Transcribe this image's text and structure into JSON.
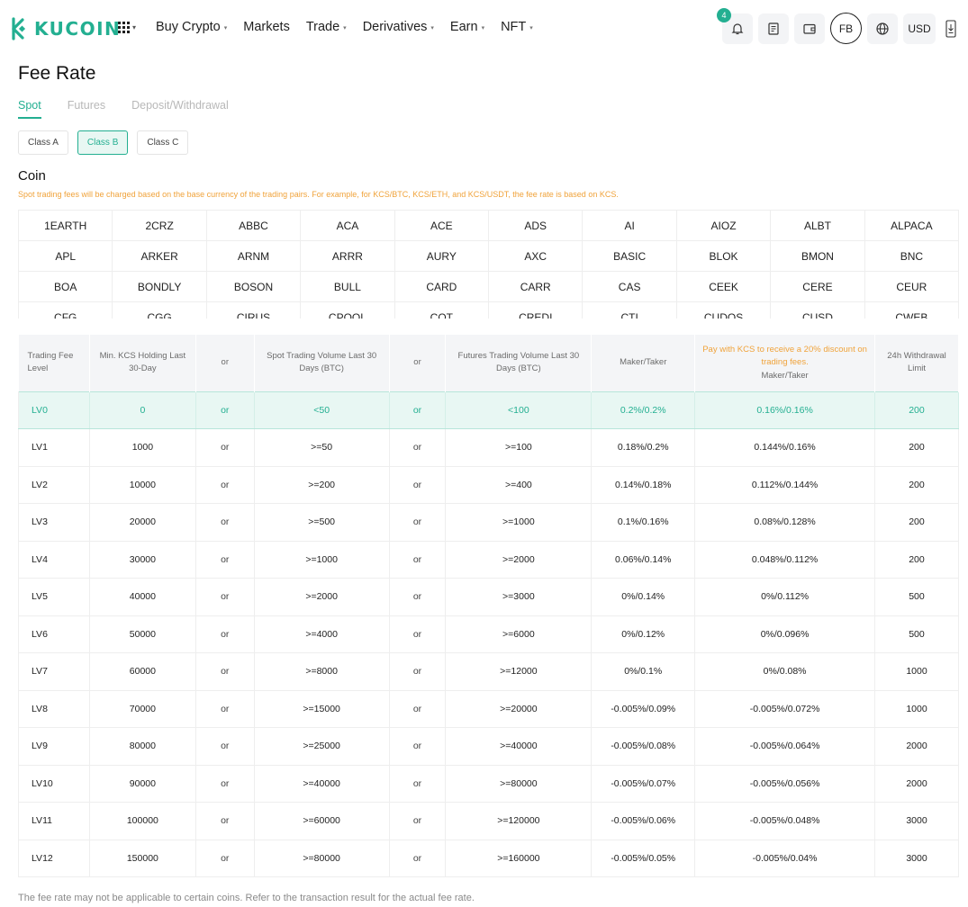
{
  "header": {
    "brand": "KUCOIN",
    "nav": [
      {
        "label": "Buy Crypto",
        "caret": true
      },
      {
        "label": "Markets",
        "caret": false
      },
      {
        "label": "Trade",
        "caret": true
      },
      {
        "label": "Derivatives",
        "caret": true
      },
      {
        "label": "Earn",
        "caret": true
      },
      {
        "label": "NFT",
        "caret": true
      }
    ],
    "notification_count": "4",
    "avatar_initials": "FB",
    "currency": "USD"
  },
  "page": {
    "title": "Fee Rate",
    "tabs": [
      "Spot",
      "Futures",
      "Deposit/Withdrawal"
    ],
    "active_tab": "Spot",
    "class_buttons": [
      "Class A",
      "Class B",
      "Class C"
    ],
    "active_class": "Class B"
  },
  "coin": {
    "title": "Coin",
    "note": "Spot trading fees will be charged based on the base currency of the trading pairs. For example, for KCS/BTC, KCS/ETH, and KCS/USDT, the fee rate is based on KCS.",
    "rows": [
      [
        "1EARTH",
        "2CRZ",
        "ABBC",
        "ACA",
        "ACE",
        "ADS",
        "AI",
        "AIOZ",
        "ALBT",
        "ALPACA"
      ],
      [
        "APL",
        "ARKER",
        "ARNM",
        "ARRR",
        "AURY",
        "AXC",
        "BASIC",
        "BLOK",
        "BMON",
        "BNC"
      ],
      [
        "BOA",
        "BONDLY",
        "BOSON",
        "BULL",
        "CARD",
        "CARR",
        "CAS",
        "CEEK",
        "CERE",
        "CEUR"
      ],
      [
        "CFG",
        "CGG",
        "CIRUS",
        "CPOOL",
        "COT",
        "CREDI",
        "CTI",
        "CUDOS",
        "CUSD",
        "CWEB"
      ]
    ]
  },
  "fee_table": {
    "headers": {
      "level": "Trading Fee Level",
      "kcs": "Min. KCS Holding Last 30-Day",
      "or": "or",
      "spot": "Spot Trading Volume Last 30 Days (BTC)",
      "futures": "Futures Trading Volume Last 30 Days (BTC)",
      "maker_taker": "Maker/Taker",
      "discount_note": "Pay with KCS to receive a 20% discount on trading fees.",
      "discount_sub": "Maker/Taker",
      "withdrawal": "24h Withdrawal Limit"
    },
    "rows": [
      {
        "level": "LV0",
        "kcs": "0",
        "or1": "or",
        "spot": "<50",
        "or2": "or",
        "futures": "<100",
        "maker_taker": "0.2%/0.2%",
        "discount": "0.16%/0.16%",
        "limit": "200"
      },
      {
        "level": "LV1",
        "kcs": "1000",
        "or1": "or",
        "spot": ">=50",
        "or2": "or",
        "futures": ">=100",
        "maker_taker": "0.18%/0.2%",
        "discount": "0.144%/0.16%",
        "limit": "200"
      },
      {
        "level": "LV2",
        "kcs": "10000",
        "or1": "or",
        "spot": ">=200",
        "or2": "or",
        "futures": ">=400",
        "maker_taker": "0.14%/0.18%",
        "discount": "0.112%/0.144%",
        "limit": "200"
      },
      {
        "level": "LV3",
        "kcs": "20000",
        "or1": "or",
        "spot": ">=500",
        "or2": "or",
        "futures": ">=1000",
        "maker_taker": "0.1%/0.16%",
        "discount": "0.08%/0.128%",
        "limit": "200"
      },
      {
        "level": "LV4",
        "kcs": "30000",
        "or1": "or",
        "spot": ">=1000",
        "or2": "or",
        "futures": ">=2000",
        "maker_taker": "0.06%/0.14%",
        "discount": "0.048%/0.112%",
        "limit": "200"
      },
      {
        "level": "LV5",
        "kcs": "40000",
        "or1": "or",
        "spot": ">=2000",
        "or2": "or",
        "futures": ">=3000",
        "maker_taker": "0%/0.14%",
        "discount": "0%/0.112%",
        "limit": "500"
      },
      {
        "level": "LV6",
        "kcs": "50000",
        "or1": "or",
        "spot": ">=4000",
        "or2": "or",
        "futures": ">=6000",
        "maker_taker": "0%/0.12%",
        "discount": "0%/0.096%",
        "limit": "500"
      },
      {
        "level": "LV7",
        "kcs": "60000",
        "or1": "or",
        "spot": ">=8000",
        "or2": "or",
        "futures": ">=12000",
        "maker_taker": "0%/0.1%",
        "discount": "0%/0.08%",
        "limit": "1000"
      },
      {
        "level": "LV8",
        "kcs": "70000",
        "or1": "or",
        "spot": ">=15000",
        "or2": "or",
        "futures": ">=20000",
        "maker_taker": "-0.005%/0.09%",
        "discount": "-0.005%/0.072%",
        "limit": "1000"
      },
      {
        "level": "LV9",
        "kcs": "80000",
        "or1": "or",
        "spot": ">=25000",
        "or2": "or",
        "futures": ">=40000",
        "maker_taker": "-0.005%/0.08%",
        "discount": "-0.005%/0.064%",
        "limit": "2000"
      },
      {
        "level": "LV10",
        "kcs": "90000",
        "or1": "or",
        "spot": ">=40000",
        "or2": "or",
        "futures": ">=80000",
        "maker_taker": "-0.005%/0.07%",
        "discount": "-0.005%/0.056%",
        "limit": "2000"
      },
      {
        "level": "LV11",
        "kcs": "100000",
        "or1": "or",
        "spot": ">=60000",
        "or2": "or",
        "futures": ">=120000",
        "maker_taker": "-0.005%/0.06%",
        "discount": "-0.005%/0.048%",
        "limit": "3000"
      },
      {
        "level": "LV12",
        "kcs": "150000",
        "or1": "or",
        "spot": ">=80000",
        "or2": "or",
        "futures": ">=160000",
        "maker_taker": "-0.005%/0.05%",
        "discount": "-0.005%/0.04%",
        "limit": "3000"
      }
    ],
    "highlight_level": "LV0"
  },
  "footer_note": "The fee rate may not be applicable to certain coins. Refer to the transaction result for the actual fee rate.",
  "colors": {
    "accent": "#23af91",
    "warning": "#f0a33b",
    "highlight_bg": "#e8f7f3"
  }
}
